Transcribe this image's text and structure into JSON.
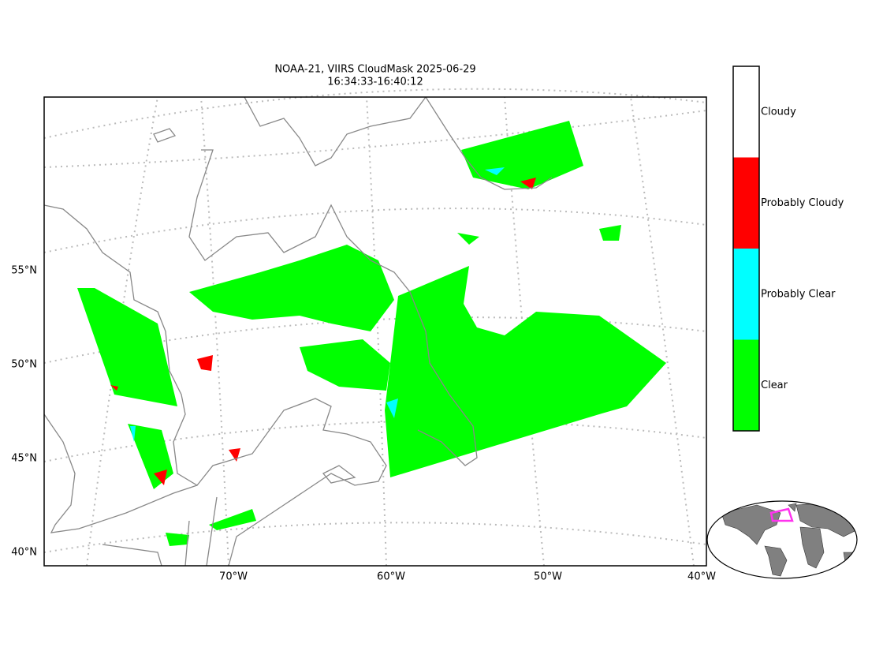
{
  "title": [
    "NOAA-21, VIIRS CloudMask 2025-06-29",
    "16:34:33-16:40:12"
  ],
  "lat_labels": [
    "55°N",
    "50°N",
    "45°N",
    "40°N"
  ],
  "lon_labels": [
    "70°W",
    "60°W",
    "50°W",
    "40°W"
  ],
  "legend": [
    {
      "name": "Cloudy",
      "color": "#ffffff"
    },
    {
      "name": "Probably Cloudy",
      "color": "#ff0000"
    },
    {
      "name": "Probably Clear",
      "color": "#00ffff"
    },
    {
      "name": "Clear",
      "color": "#00ff00"
    }
  ]
}
